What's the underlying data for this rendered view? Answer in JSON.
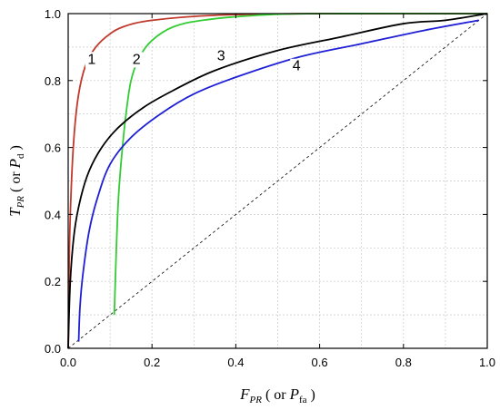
{
  "chart_data": {
    "type": "line",
    "xlabel": {
      "main": "F",
      "sub": "PR",
      "paren_open": " ( or ",
      "paren_main": "P",
      "paren_sub": "fa",
      "paren_close": " )"
    },
    "ylabel": {
      "main": "T",
      "sub": "PR",
      "paren_open": " ( or ",
      "paren_main": "P",
      "paren_sub": "d",
      "paren_close": " )"
    },
    "xlim": [
      0.0,
      1.0
    ],
    "ylim": [
      0.0,
      1.0
    ],
    "xticks": [
      0.0,
      0.2,
      0.4,
      0.6,
      0.8,
      1.0
    ],
    "yticks": [
      0.0,
      0.2,
      0.4,
      0.6,
      0.8,
      1.0
    ],
    "xtick_labels": [
      "0.0",
      "0.2",
      "0.4",
      "0.6",
      "0.8",
      "1.0"
    ],
    "ytick_labels": [
      "0.0",
      "0.2",
      "0.4",
      "0.6",
      "0.8",
      "1.0"
    ],
    "grid": true,
    "diagonal": {
      "from": [
        0,
        0
      ],
      "to": [
        1,
        1
      ],
      "style": "dashed",
      "color": "#000000"
    },
    "series": [
      {
        "label": "1",
        "color": "#c0392b",
        "label_pos": [
          0.056,
          0.85
        ],
        "points": [
          [
            0.0,
            0.0
          ],
          [
            0.003,
            0.3
          ],
          [
            0.008,
            0.5
          ],
          [
            0.015,
            0.65
          ],
          [
            0.025,
            0.76
          ],
          [
            0.04,
            0.84
          ],
          [
            0.06,
            0.89
          ],
          [
            0.09,
            0.93
          ],
          [
            0.13,
            0.96
          ],
          [
            0.2,
            0.98
          ],
          [
            0.35,
            0.995
          ],
          [
            0.6,
            1.0
          ],
          [
            1.0,
            1.0
          ]
        ]
      },
      {
        "label": "2",
        "color": "#33cc33",
        "label_pos": [
          0.163,
          0.85
        ],
        "points": [
          [
            0.11,
            0.1
          ],
          [
            0.115,
            0.3
          ],
          [
            0.12,
            0.45
          ],
          [
            0.128,
            0.58
          ],
          [
            0.138,
            0.7
          ],
          [
            0.15,
            0.8
          ],
          [
            0.17,
            0.87
          ],
          [
            0.2,
            0.92
          ],
          [
            0.25,
            0.96
          ],
          [
            0.32,
            0.98
          ],
          [
            0.45,
            0.995
          ],
          [
            0.6,
            1.0
          ],
          [
            1.0,
            1.0
          ]
        ]
      },
      {
        "label": "3",
        "color": "#000000",
        "label_pos": [
          0.365,
          0.86
        ],
        "points": [
          [
            0.0,
            0.0
          ],
          [
            0.005,
            0.2
          ],
          [
            0.015,
            0.35
          ],
          [
            0.03,
            0.45
          ],
          [
            0.05,
            0.53
          ],
          [
            0.08,
            0.6
          ],
          [
            0.12,
            0.66
          ],
          [
            0.18,
            0.72
          ],
          [
            0.25,
            0.77
          ],
          [
            0.35,
            0.83
          ],
          [
            0.5,
            0.89
          ],
          [
            0.65,
            0.93
          ],
          [
            0.8,
            0.97
          ],
          [
            0.9,
            0.98
          ],
          [
            1.0,
            1.0
          ]
        ]
      },
      {
        "label": "4",
        "color": "#1f1fd6",
        "label_pos": [
          0.545,
          0.83
        ],
        "points": [
          [
            0.025,
            0.02
          ],
          [
            0.028,
            0.12
          ],
          [
            0.035,
            0.22
          ],
          [
            0.05,
            0.35
          ],
          [
            0.07,
            0.45
          ],
          [
            0.1,
            0.55
          ],
          [
            0.15,
            0.63
          ],
          [
            0.22,
            0.7
          ],
          [
            0.3,
            0.76
          ],
          [
            0.4,
            0.81
          ],
          [
            0.55,
            0.87
          ],
          [
            0.7,
            0.91
          ],
          [
            0.85,
            0.95
          ],
          [
            0.98,
            0.98
          ]
        ]
      }
    ]
  }
}
